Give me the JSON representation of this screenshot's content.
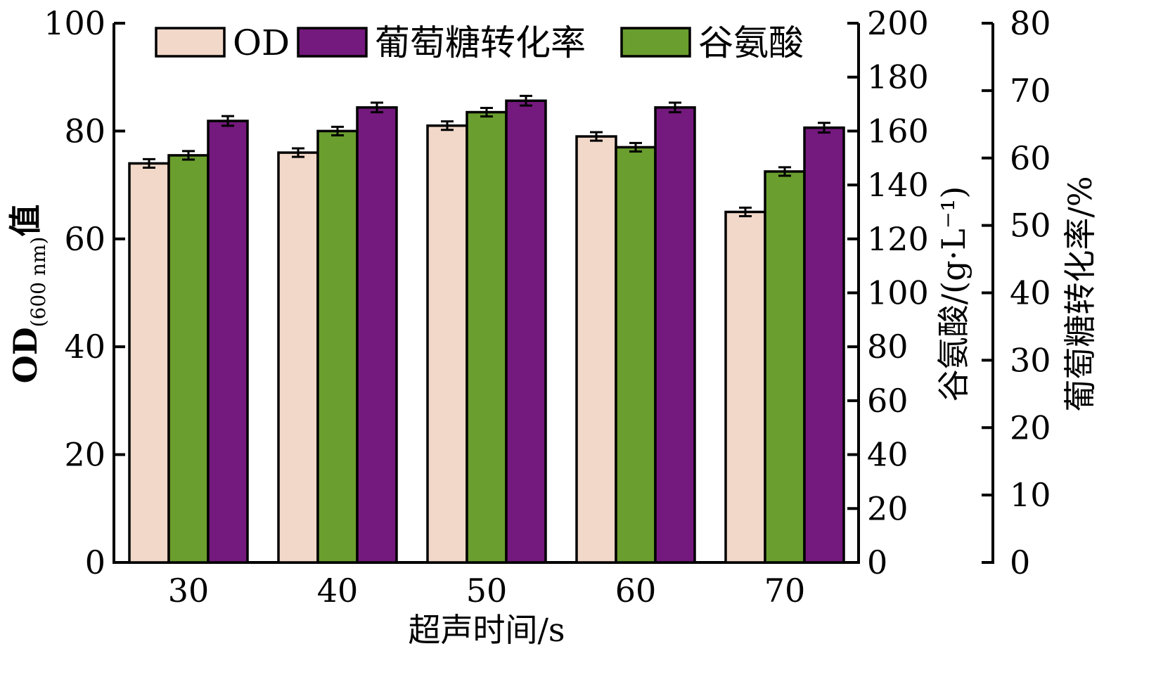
{
  "chart_data": {
    "type": "bar",
    "categories": [
      "30",
      "40",
      "50",
      "60",
      "70"
    ],
    "xlabel": "超声时间/s",
    "ylabel_left": {
      "main": "OD",
      "sub": "(600 nm)",
      "suffix": "值"
    },
    "ylabel_right1": "谷氨酸/(g·L⁻¹)",
    "ylabel_right2": "葡萄糖转化率/%",
    "axes": {
      "left": {
        "min": 0,
        "max": 100,
        "ticks": [
          "0",
          "20",
          "40",
          "60",
          "80",
          "100"
        ]
      },
      "right1": {
        "min": 0,
        "max": 200,
        "ticks": [
          "0",
          "20",
          "40",
          "60",
          "80",
          "100",
          "120",
          "140",
          "160",
          "180",
          "200"
        ]
      },
      "right2": {
        "min": 0,
        "max": 80,
        "ticks": [
          "0",
          "10",
          "20",
          "30",
          "40",
          "50",
          "60",
          "70",
          "80"
        ]
      }
    },
    "series": [
      {
        "name": "OD",
        "axis": "left",
        "color": "#F2D8C9",
        "values": [
          74,
          76,
          81,
          79,
          65
        ],
        "error": [
          0.4,
          0.4,
          0.4,
          0.4,
          0.4
        ]
      },
      {
        "name": "谷氨酸",
        "axis": "right1",
        "color": "#6A9E2E",
        "values": [
          151,
          160,
          167,
          154,
          145
        ],
        "error": [
          0.8,
          0.8,
          0.8,
          0.8,
          0.8
        ]
      },
      {
        "name": "葡萄糖转化率",
        "axis": "right2",
        "color": "#74197D",
        "values": [
          65.5,
          67.5,
          68.5,
          67.5,
          64.5
        ],
        "error": [
          0.4,
          0.4,
          0.4,
          0.4,
          0.4
        ]
      }
    ],
    "legend_order": [
      "OD",
      "葡萄糖转化率",
      "谷氨酸"
    ],
    "legend_position": "top",
    "grid": false
  }
}
